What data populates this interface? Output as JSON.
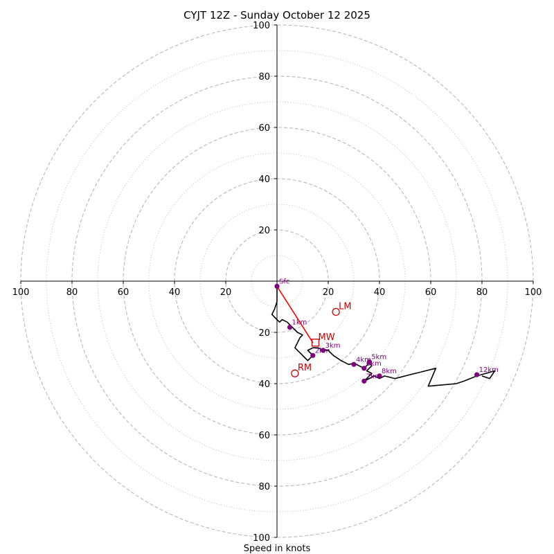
{
  "chart_data": {
    "type": "hodograph",
    "title": "CYJT 12Z - Sunday October 12 2025",
    "xlabel": "Speed in knots",
    "max_speed": 100,
    "major_rings": [
      20,
      40,
      60,
      80,
      100
    ],
    "minor_rings": [
      10,
      30,
      50,
      70,
      90
    ],
    "x_ticks": [
      "100",
      "80",
      "60",
      "40",
      "20",
      "20",
      "40",
      "60",
      "80",
      "100"
    ],
    "y_ticks": [
      "100",
      "80",
      "60",
      "40",
      "20",
      "20",
      "40",
      "60",
      "80",
      "100"
    ],
    "trace_uv": [
      [
        0,
        -2
      ],
      [
        0,
        -8
      ],
      [
        -1,
        -11
      ],
      [
        -2,
        -13
      ],
      [
        0,
        -15
      ],
      [
        1,
        -16
      ],
      [
        2,
        -15
      ],
      [
        4,
        -16
      ],
      [
        5,
        -17
      ],
      [
        6,
        -18
      ],
      [
        8,
        -20
      ],
      [
        10,
        -21
      ],
      [
        9,
        -22
      ],
      [
        8,
        -24
      ],
      [
        7,
        -26
      ],
      [
        9,
        -28
      ],
      [
        11,
        -30
      ],
      [
        12,
        -31
      ],
      [
        13,
        -30
      ],
      [
        14,
        -29
      ],
      [
        12,
        -27
      ],
      [
        14,
        -26
      ],
      [
        16,
        -26
      ],
      [
        18,
        -27
      ],
      [
        20,
        -27
      ],
      [
        22,
        -29
      ],
      [
        25,
        -31
      ],
      [
        28,
        -32.5
      ],
      [
        30,
        -32
      ],
      [
        32,
        -33
      ],
      [
        34,
        -34
      ],
      [
        35,
        -33
      ],
      [
        36,
        -32
      ],
      [
        37,
        -33
      ],
      [
        36,
        -34
      ],
      [
        35,
        -35
      ],
      [
        37,
        -36
      ],
      [
        36,
        -37
      ],
      [
        35,
        -38
      ],
      [
        34,
        -39
      ],
      [
        36,
        -38
      ],
      [
        38,
        -37
      ],
      [
        40,
        -38
      ],
      [
        42,
        -37
      ],
      [
        46,
        -38
      ],
      [
        48,
        -37.5
      ],
      [
        52,
        -36.5
      ],
      [
        56,
        -35.5
      ],
      [
        58,
        -35
      ],
      [
        62,
        -34
      ],
      [
        59,
        -41
      ],
      [
        70,
        -40
      ],
      [
        73,
        -39
      ],
      [
        78,
        -37
      ],
      [
        85,
        -35
      ],
      [
        83,
        -38
      ],
      [
        80,
        -37
      ]
    ],
    "height_markers": [
      {
        "label": "Sfc",
        "u": 0,
        "v": -2
      },
      {
        "label": "1km",
        "u": 5,
        "v": -18
      },
      {
        "label": "2km",
        "u": 14,
        "v": -29
      },
      {
        "label": "3km",
        "u": 18,
        "v": -27
      },
      {
        "label": "4km",
        "u": 30,
        "v": -32.5
      },
      {
        "label": "5km",
        "u": 36,
        "v": -31.5
      },
      {
        "label": "6km",
        "u": 34,
        "v": -34
      },
      {
        "label": "7km",
        "u": 34,
        "v": -39
      },
      {
        "label": "8km",
        "u": 40,
        "v": -37
      },
      {
        "label": "12km",
        "u": 78,
        "v": -36.5
      }
    ],
    "storm_motion": {
      "LM": {
        "label": "LM",
        "u": 23,
        "v": -12
      },
      "RM": {
        "label": "RM",
        "u": 7,
        "v": -36
      },
      "MW": {
        "label": "MW",
        "u": 15,
        "v": -24
      }
    },
    "mean_wind_vector": {
      "from_u": 0,
      "from_v": -2,
      "to_u": 14,
      "to_v": -24
    }
  },
  "colors": {
    "ring": "#b8b8b8",
    "axis": "#000000",
    "trace": "#000000",
    "marker": "#800080",
    "storm": "#cc0000",
    "vector": "#ff0000"
  }
}
